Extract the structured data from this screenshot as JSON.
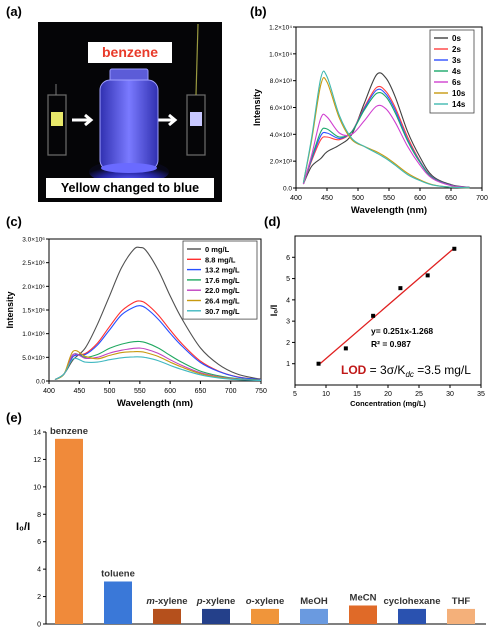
{
  "panel_labels": [
    "(a)",
    "(b)",
    "(c)",
    "(d)",
    "(e)"
  ],
  "photo": {
    "solvent_tag": "benzene",
    "caption": "Yellow changed to blue",
    "colors": {
      "before": "#e8e86a",
      "after": "#c8c8ff",
      "vial_glow": "#4d4dff",
      "tag": "#e83a2a"
    }
  },
  "annotation_d": {
    "equation": "y= 0.251x-1.268",
    "r2": "R² = 0.987",
    "lod_label": "LOD",
    "lod_eq": "= 3σ/K",
    "lod_sub": "dc",
    "lod_val": "=3.5 mg/L"
  },
  "chart_data": [
    {
      "panel": "(b)",
      "type": "line",
      "xlabel": "Wavelength (nm)",
      "ylabel": "Intensity",
      "xlim": [
        400,
        700
      ],
      "ylim": [
        0,
        12000
      ],
      "xticks": [
        400,
        450,
        500,
        550,
        600,
        650,
        700
      ],
      "yticks": [
        0,
        2000,
        4000,
        6000,
        8000,
        10000,
        12000
      ],
      "ytick_labels": [
        "0.0",
        "2.0×10³",
        "4.0×10³",
        "6.0×10³",
        "8.0×10³",
        "1.0×10⁴",
        "1.2×10⁴"
      ],
      "legend_position": "top-right",
      "series": [
        {
          "name": "0s",
          "color": "#404040",
          "x": [
            412,
            425,
            440,
            450,
            470,
            490,
            510,
            530,
            545,
            560,
            580,
            600,
            620,
            650,
            680
          ],
          "y": [
            300,
            1600,
            2200,
            2700,
            3200,
            4000,
            6300,
            8450,
            8200,
            6800,
            4200,
            2300,
            900,
            250,
            50
          ]
        },
        {
          "name": "2s",
          "color": "#ff4040",
          "x": [
            412,
            425,
            440,
            450,
            470,
            490,
            510,
            530,
            545,
            560,
            580,
            600,
            620,
            650,
            680
          ],
          "y": [
            300,
            2000,
            3600,
            3800,
            3600,
            4200,
            6000,
            7500,
            7200,
            6000,
            3800,
            2000,
            800,
            200,
            40
          ]
        },
        {
          "name": "3s",
          "color": "#3050ff",
          "x": [
            412,
            425,
            440,
            450,
            470,
            490,
            510,
            530,
            545,
            560,
            580,
            600,
            620,
            650,
            680
          ],
          "y": [
            300,
            2100,
            3900,
            4100,
            3700,
            4200,
            5900,
            7300,
            7000,
            5800,
            3600,
            1950,
            780,
            200,
            40
          ]
        },
        {
          "name": "4s",
          "color": "#1aa86a",
          "x": [
            412,
            425,
            440,
            450,
            470,
            490,
            510,
            530,
            545,
            560,
            580,
            600,
            620,
            650,
            680
          ],
          "y": [
            300,
            2200,
            4200,
            4400,
            3800,
            4200,
            5800,
            7050,
            6800,
            5600,
            3500,
            1900,
            760,
            190,
            40
          ]
        },
        {
          "name": "6s",
          "color": "#d040d0",
          "x": [
            412,
            425,
            440,
            450,
            470,
            490,
            510,
            530,
            545,
            560,
            580,
            600,
            620,
            650,
            680
          ],
          "y": [
            300,
            2400,
            5200,
            5300,
            4100,
            4000,
            5000,
            6100,
            5900,
            4900,
            3100,
            1700,
            700,
            180,
            40
          ]
        },
        {
          "name": "10s",
          "color": "#c89a10",
          "x": [
            412,
            425,
            440,
            450,
            470,
            490,
            510,
            530,
            545,
            560,
            580,
            600,
            620,
            650,
            680
          ],
          "y": [
            400,
            3500,
            7700,
            7900,
            5200,
            3600,
            3100,
            2700,
            2300,
            1800,
            1100,
            600,
            250,
            60,
            20
          ]
        },
        {
          "name": "14s",
          "color": "#40b8b0",
          "x": [
            412,
            425,
            440,
            450,
            470,
            490,
            510,
            530,
            545,
            560,
            580,
            600,
            620,
            650,
            680
          ],
          "y": [
            400,
            3700,
            8200,
            8300,
            5400,
            3700,
            3100,
            2600,
            2200,
            1700,
            1000,
            550,
            230,
            60,
            20
          ]
        }
      ]
    },
    {
      "panel": "(c)",
      "type": "line",
      "xlabel": "Wavelength (nm)",
      "ylabel": "Intensity",
      "xlim": [
        400,
        750
      ],
      "ylim": [
        0,
        3000000
      ],
      "xticks": [
        400,
        450,
        500,
        550,
        600,
        650,
        700,
        750
      ],
      "yticks": [
        0,
        500000,
        1000000,
        1500000,
        2000000,
        2500000,
        3000000
      ],
      "ytick_labels": [
        "0.0",
        "5.0×10⁵",
        "1.0×10⁶",
        "1.5×10⁶",
        "2.0×10⁶",
        "2.5×10⁶",
        "3.0×10⁶"
      ],
      "legend_position": "top-right",
      "series": [
        {
          "name": "0 mg/L",
          "color": "#505050",
          "x": [
            410,
            425,
            440,
            460,
            480,
            500,
            520,
            540,
            550,
            560,
            580,
            600,
            620,
            650,
            680,
            710,
            740,
            750
          ],
          "y": [
            30000,
            150000,
            450000,
            700000,
            1200000,
            1800000,
            2400000,
            2780000,
            2820000,
            2760000,
            2350000,
            1800000,
            1300000,
            700000,
            350000,
            150000,
            60000,
            40000
          ]
        },
        {
          "name": "8.8 mg/L",
          "color": "#ff3030",
          "x": [
            410,
            425,
            440,
            460,
            480,
            500,
            520,
            540,
            550,
            560,
            580,
            600,
            620,
            650,
            680,
            710,
            740,
            750
          ],
          "y": [
            30000,
            150000,
            520000,
            580000,
            800000,
            1150000,
            1480000,
            1660000,
            1690000,
            1640000,
            1400000,
            1080000,
            780000,
            420000,
            210000,
            90000,
            40000,
            30000
          ]
        },
        {
          "name": "13.2 mg/L",
          "color": "#2850ff",
          "x": [
            410,
            425,
            440,
            460,
            480,
            500,
            520,
            540,
            550,
            560,
            580,
            600,
            620,
            650,
            680,
            710,
            740,
            750
          ],
          "y": [
            30000,
            150000,
            520000,
            560000,
            760000,
            1080000,
            1400000,
            1560000,
            1590000,
            1540000,
            1310000,
            1010000,
            730000,
            390000,
            200000,
            85000,
            40000,
            30000
          ]
        },
        {
          "name": "17.6 mg/L",
          "color": "#20a860",
          "x": [
            410,
            425,
            440,
            460,
            480,
            500,
            520,
            540,
            550,
            560,
            580,
            600,
            620,
            650,
            680,
            710,
            740,
            750
          ],
          "y": [
            30000,
            150000,
            560000,
            500000,
            560000,
            690000,
            780000,
            830000,
            835000,
            810000,
            700000,
            540000,
            390000,
            210000,
            110000,
            50000,
            25000,
            20000
          ]
        },
        {
          "name": "22.0 mg/L",
          "color": "#c040c0",
          "x": [
            410,
            425,
            440,
            460,
            480,
            500,
            520,
            540,
            550,
            560,
            580,
            600,
            620,
            650,
            680,
            710,
            740,
            750
          ],
          "y": [
            30000,
            150000,
            560000,
            480000,
            500000,
            590000,
            650000,
            690000,
            695000,
            675000,
            585000,
            450000,
            325000,
            175000,
            90000,
            40000,
            20000,
            15000
          ]
        },
        {
          "name": "26.4 mg/L",
          "color": "#c89a10",
          "x": [
            410,
            425,
            440,
            460,
            480,
            500,
            520,
            540,
            550,
            560,
            580,
            600,
            620,
            650,
            680,
            710,
            740,
            750
          ],
          "y": [
            30000,
            150000,
            630000,
            520000,
            470000,
            540000,
            600000,
            620000,
            620000,
            600000,
            520000,
            400000,
            290000,
            155000,
            80000,
            35000,
            18000,
            14000
          ]
        },
        {
          "name": "30.7 mg/L",
          "color": "#40b8c0",
          "x": [
            410,
            425,
            440,
            460,
            480,
            500,
            520,
            540,
            550,
            560,
            580,
            600,
            620,
            650,
            680,
            710,
            740,
            750
          ],
          "y": [
            30000,
            150000,
            470000,
            400000,
            400000,
            450000,
            490000,
            510000,
            510000,
            495000,
            430000,
            330000,
            240000,
            130000,
            65000,
            30000,
            15000,
            12000
          ]
        }
      ]
    },
    {
      "panel": "(d)",
      "type": "scatter",
      "xlabel": "Concentration (mg/L)",
      "ylabel": "I₀/I",
      "xlim": [
        5,
        35
      ],
      "ylim": [
        0,
        7
      ],
      "xticks": [
        5,
        10,
        15,
        20,
        25,
        30,
        35
      ],
      "yticks": [
        1,
        2,
        3,
        4,
        5,
        6
      ],
      "points": {
        "x": [
          8.8,
          13.2,
          17.6,
          22.0,
          26.4,
          30.7
        ],
        "y": [
          1.0,
          1.72,
          3.25,
          4.55,
          5.15,
          6.4
        ]
      },
      "fit": {
        "slope": 0.251,
        "intercept": -1.268,
        "x_range": [
          9.1,
          30.7
        ],
        "color": "#e02020"
      }
    },
    {
      "panel": "(e)",
      "type": "bar",
      "ylabel": "I₀/I",
      "ylim": [
        0,
        14
      ],
      "yticks": [
        0,
        2,
        4,
        6,
        8,
        10,
        12,
        14
      ],
      "categories": [
        "benzene",
        "toluene",
        "m-xylene",
        "p-xylene",
        "o-xylene",
        "MeOH",
        "MeCN",
        "cyclohexane",
        "THF"
      ],
      "label_parts": [
        [
          "benzene"
        ],
        [
          "toluene"
        ],
        [
          "m",
          "-xylene"
        ],
        [
          "p",
          "-xylene"
        ],
        [
          "o",
          "-xylene"
        ],
        [
          "MeOH"
        ],
        [
          "MeCN"
        ],
        [
          "cyclohexane"
        ],
        [
          "THF"
        ]
      ],
      "values": [
        13.5,
        3.1,
        1.1,
        1.1,
        1.1,
        1.1,
        1.35,
        1.1,
        1.1
      ],
      "colors": [
        "#f08a3a",
        "#3a78d8",
        "#b5501c",
        "#24408a",
        "#f0953a",
        "#6a9ae0",
        "#e06a28",
        "#2a52b0",
        "#f4b07a"
      ]
    }
  ]
}
